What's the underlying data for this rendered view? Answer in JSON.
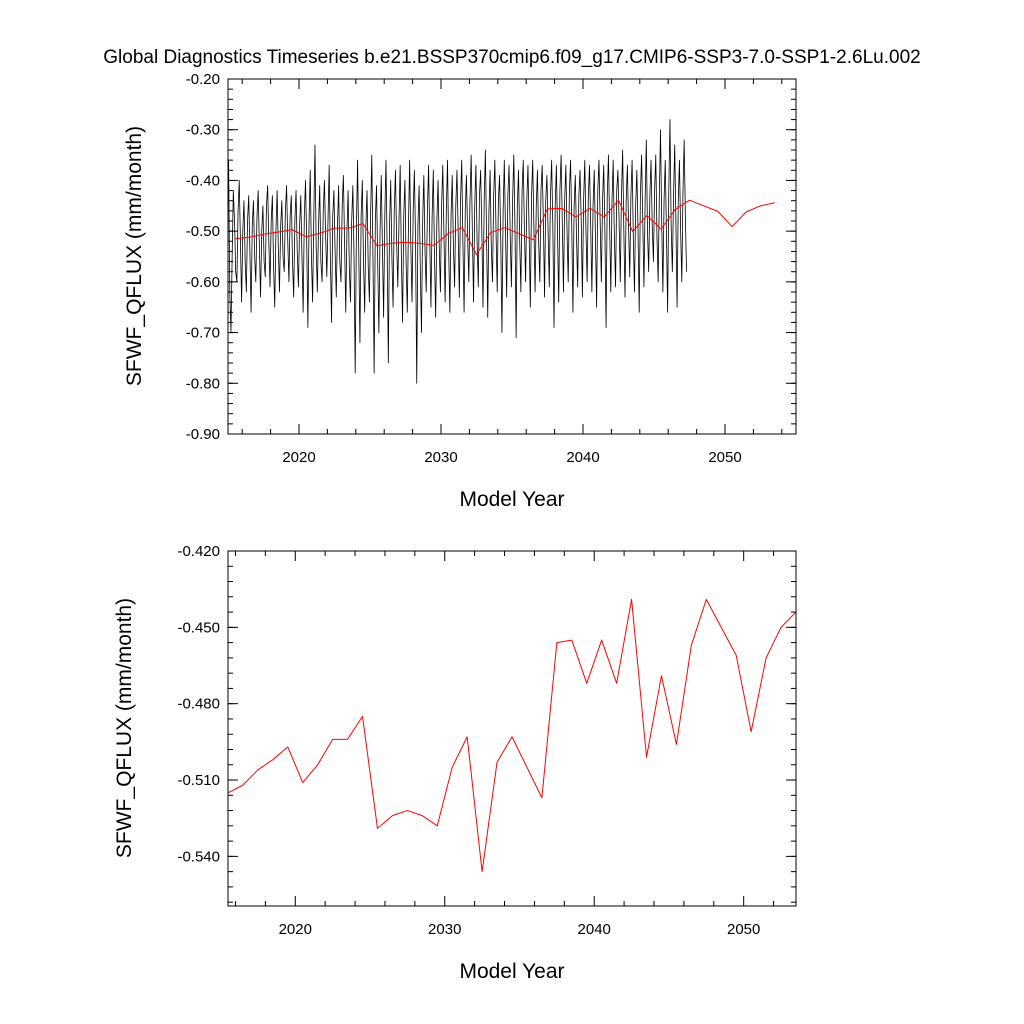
{
  "chart_data": [
    {
      "type": "line",
      "title": "Global Diagnostics Timeseries b.e21.BSSP370cmip6.f09_g17.CMIP6-SSP3-7.0-SSP1-2.6Lu.002",
      "xlabel": "Model Year",
      "ylabel": "SFWF_QFLUX (mm/month)",
      "xlim": [
        2015,
        2055
      ],
      "ylim": [
        -0.9,
        -0.2
      ],
      "xticks": [
        2020,
        2030,
        2040,
        2050
      ],
      "xtick_labels": [
        "2020",
        "2030",
        "2040",
        "2050"
      ],
      "yticks": [
        -0.9,
        -0.8,
        -0.7,
        -0.6,
        -0.5,
        -0.4,
        -0.3,
        -0.2
      ],
      "ytick_labels": [
        "-0.90",
        "-0.80",
        "-0.70",
        "-0.60",
        "-0.50",
        "-0.40",
        "-0.30",
        "-0.20"
      ],
      "grid": false,
      "series": [
        {
          "kind": "monthly",
          "color": "#000000",
          "seed_note": "",
          "years_start": 2015.0,
          "months": 480,
          "values": [
            -0.36,
            -0.62,
            -0.7,
            -0.55,
            -0.42,
            -0.48,
            -0.58,
            -0.6,
            -0.46,
            -0.4,
            -0.52,
            -0.64,
            -0.5,
            -0.44,
            -0.56,
            -0.62,
            -0.48,
            -0.43,
            -0.54,
            -0.66,
            -0.49,
            -0.44,
            -0.55,
            -0.6,
            -0.47,
            -0.42,
            -0.53,
            -0.63,
            -0.5,
            -0.45,
            -0.56,
            -0.59,
            -0.45,
            -0.41,
            -0.52,
            -0.61,
            -0.48,
            -0.43,
            -0.57,
            -0.65,
            -0.5,
            -0.42,
            -0.53,
            -0.62,
            -0.49,
            -0.44,
            -0.55,
            -0.58,
            -0.46,
            -0.41,
            -0.52,
            -0.6,
            -0.47,
            -0.43,
            -0.56,
            -0.63,
            -0.48,
            -0.42,
            -0.54,
            -0.61,
            -0.49,
            -0.43,
            -0.55,
            -0.66,
            -0.47,
            -0.4,
            -0.52,
            -0.69,
            -0.48,
            -0.38,
            -0.55,
            -0.64,
            -0.47,
            -0.33,
            -0.53,
            -0.62,
            -0.49,
            -0.41,
            -0.56,
            -0.6,
            -0.46,
            -0.4,
            -0.51,
            -0.59,
            -0.48,
            -0.37,
            -0.55,
            -0.68,
            -0.47,
            -0.42,
            -0.54,
            -0.63,
            -0.49,
            -0.41,
            -0.56,
            -0.6,
            -0.45,
            -0.39,
            -0.52,
            -0.66,
            -0.5,
            -0.42,
            -0.57,
            -0.64,
            -0.48,
            -0.41,
            -0.55,
            -0.78,
            -0.5,
            -0.36,
            -0.54,
            -0.72,
            -0.47,
            -0.4,
            -0.56,
            -0.66,
            -0.49,
            -0.42,
            -0.57,
            -0.64,
            -0.47,
            -0.35,
            -0.55,
            -0.78,
            -0.48,
            -0.41,
            -0.56,
            -0.7,
            -0.5,
            -0.39,
            -0.53,
            -0.67,
            -0.47,
            -0.36,
            -0.54,
            -0.76,
            -0.49,
            -0.4,
            -0.55,
            -0.65,
            -0.46,
            -0.38,
            -0.52,
            -0.61,
            -0.48,
            -0.37,
            -0.55,
            -0.68,
            -0.47,
            -0.4,
            -0.56,
            -0.66,
            -0.49,
            -0.36,
            -0.53,
            -0.64,
            -0.46,
            -0.38,
            -0.52,
            -0.8,
            -0.49,
            -0.41,
            -0.57,
            -0.7,
            -0.48,
            -0.39,
            -0.54,
            -0.62,
            -0.46,
            -0.37,
            -0.52,
            -0.65,
            -0.47,
            -0.38,
            -0.55,
            -0.67,
            -0.48,
            -0.4,
            -0.53,
            -0.62,
            -0.45,
            -0.37,
            -0.51,
            -0.64,
            -0.46,
            -0.36,
            -0.54,
            -0.66,
            -0.47,
            -0.39,
            -0.53,
            -0.61,
            -0.45,
            -0.38,
            -0.5,
            -0.63,
            -0.44,
            -0.36,
            -0.52,
            -0.66,
            -0.46,
            -0.39,
            -0.51,
            -0.6,
            -0.44,
            -0.35,
            -0.5,
            -0.64,
            -0.45,
            -0.37,
            -0.52,
            -0.61,
            -0.43,
            -0.38,
            -0.5,
            -0.65,
            -0.44,
            -0.34,
            -0.51,
            -0.67,
            -0.46,
            -0.38,
            -0.53,
            -0.6,
            -0.43,
            -0.36,
            -0.5,
            -0.62,
            -0.44,
            -0.39,
            -0.52,
            -0.7,
            -0.46,
            -0.36,
            -0.5,
            -0.63,
            -0.43,
            -0.37,
            -0.51,
            -0.61,
            -0.44,
            -0.35,
            -0.49,
            -0.71,
            -0.45,
            -0.38,
            -0.52,
            -0.62,
            -0.42,
            -0.36,
            -0.5,
            -0.6,
            -0.44,
            -0.37,
            -0.51,
            -0.65,
            -0.43,
            -0.36,
            -0.49,
            -0.62,
            -0.45,
            -0.38,
            -0.52,
            -0.6,
            -0.42,
            -0.37,
            -0.48,
            -0.63,
            -0.44,
            -0.39,
            -0.5,
            -0.61,
            -0.43,
            -0.36,
            -0.49,
            -0.69,
            -0.45,
            -0.37,
            -0.51,
            -0.64,
            -0.42,
            -0.35,
            -0.48,
            -0.62,
            -0.44,
            -0.37,
            -0.5,
            -0.6,
            -0.42,
            -0.36,
            -0.49,
            -0.66,
            -0.45,
            -0.39,
            -0.51,
            -0.61,
            -0.43,
            -0.38,
            -0.48,
            -0.63,
            -0.44,
            -0.36,
            -0.5,
            -0.6,
            -0.43,
            -0.37,
            -0.49,
            -0.62,
            -0.45,
            -0.38,
            -0.51,
            -0.65,
            -0.42,
            -0.36,
            -0.48,
            -0.6,
            -0.44,
            -0.37,
            -0.5,
            -0.69,
            -0.43,
            -0.35,
            -0.49,
            -0.62,
            -0.44,
            -0.36,
            -0.51,
            -0.61,
            -0.42,
            -0.38,
            -0.48,
            -0.6,
            -0.43,
            -0.34,
            -0.5,
            -0.63,
            -0.44,
            -0.37,
            -0.49,
            -0.59,
            -0.43,
            -0.36,
            -0.51,
            -0.62,
            -0.45,
            -0.38,
            -0.5,
            -0.66,
            -0.43,
            -0.35,
            -0.48,
            -0.61,
            -0.44,
            -0.32,
            -0.5,
            -0.58,
            -0.43,
            -0.36,
            -0.49,
            -0.56,
            -0.42,
            -0.35,
            -0.51,
            -0.6,
            -0.43,
            -0.3,
            -0.48,
            -0.62,
            -0.44,
            -0.36,
            -0.5,
            -0.66,
            -0.42,
            -0.28,
            -0.49,
            -0.58,
            -0.43,
            -0.33,
            -0.48,
            -0.65,
            -0.44,
            -0.36,
            -0.5,
            -0.6,
            -0.42,
            -0.32,
            -0.47,
            -0.58
          ]
        },
        {
          "kind": "annual",
          "color": "#ff0000",
          "x": [
            2015.5,
            2016.5,
            2017.5,
            2018.5,
            2019.5,
            2020.5,
            2021.5,
            2022.5,
            2023.5,
            2024.5,
            2025.5,
            2026.5,
            2027.5,
            2028.5,
            2029.5,
            2030.5,
            2031.5,
            2032.5,
            2033.5,
            2034.5,
            2035.5,
            2036.5,
            2037.5,
            2038.5,
            2039.5,
            2040.5,
            2041.5,
            2042.5,
            2043.5,
            2044.5,
            2045.5,
            2046.5,
            2047.5,
            2048.5,
            2049.5,
            2050.5,
            2051.5,
            2052.5,
            2053.5
          ],
          "values": [
            -0.515,
            -0.512,
            -0.506,
            -0.502,
            -0.497,
            -0.511,
            -0.504,
            -0.494,
            -0.494,
            -0.485,
            -0.529,
            -0.524,
            -0.522,
            -0.524,
            -0.528,
            -0.505,
            -0.493,
            -0.546,
            -0.503,
            -0.493,
            -0.505,
            -0.517,
            -0.456,
            -0.455,
            -0.472,
            -0.455,
            -0.472,
            -0.439,
            -0.501,
            -0.469,
            -0.496,
            -0.457,
            -0.439,
            -0.45,
            -0.461,
            -0.491,
            -0.462,
            -0.45,
            -0.444
          ]
        }
      ]
    },
    {
      "type": "line",
      "title": "",
      "xlabel": "Model Year",
      "ylabel": "SFWF_QFLUX (mm/month)",
      "xlim": [
        2015.5,
        2053.5
      ],
      "ylim": [
        -0.5595,
        -0.42
      ],
      "xticks": [
        2020,
        2030,
        2040,
        2050
      ],
      "xtick_labels": [
        "2020",
        "2030",
        "2040",
        "2050"
      ],
      "yticks": [
        -0.54,
        -0.51,
        -0.48,
        -0.45,
        -0.42
      ],
      "ytick_labels": [
        "-0.540",
        "-0.510",
        "-0.480",
        "-0.450",
        "-0.420"
      ],
      "grid": false,
      "series": [
        {
          "kind": "annual",
          "color": "#ff0000",
          "x": [
            2015.5,
            2016.5,
            2017.5,
            2018.5,
            2019.5,
            2020.5,
            2021.5,
            2022.5,
            2023.5,
            2024.5,
            2025.5,
            2026.5,
            2027.5,
            2028.5,
            2029.5,
            2030.5,
            2031.5,
            2032.5,
            2033.5,
            2034.5,
            2035.5,
            2036.5,
            2037.5,
            2038.5,
            2039.5,
            2040.5,
            2041.5,
            2042.5,
            2043.5,
            2044.5,
            2045.5,
            2046.5,
            2047.5,
            2048.5,
            2049.5,
            2050.5,
            2051.5,
            2052.5,
            2053.5
          ],
          "values": [
            -0.515,
            -0.512,
            -0.506,
            -0.502,
            -0.497,
            -0.511,
            -0.504,
            -0.494,
            -0.494,
            -0.485,
            -0.529,
            -0.524,
            -0.522,
            -0.524,
            -0.528,
            -0.505,
            -0.493,
            -0.546,
            -0.503,
            -0.493,
            -0.505,
            -0.517,
            -0.456,
            -0.455,
            -0.472,
            -0.455,
            -0.472,
            -0.439,
            -0.501,
            -0.469,
            -0.496,
            -0.457,
            -0.439,
            -0.45,
            -0.461,
            -0.491,
            -0.462,
            -0.45,
            -0.444
          ]
        }
      ]
    }
  ]
}
